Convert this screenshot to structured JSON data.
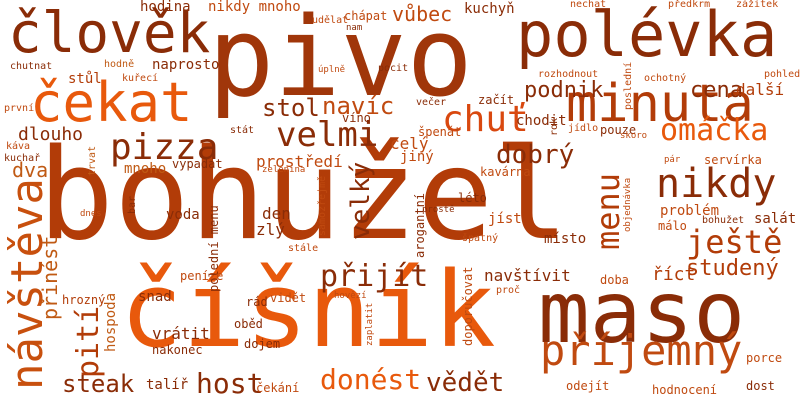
{
  "colors": {
    "background": "#ffffff",
    "dark_brown": "#8a2c07",
    "rust": "#b23c08",
    "orange": "#d9480f",
    "bright_orange": "#e8590c",
    "amber": "#c05a14"
  },
  "words": [
    {
      "text": "bohužel",
      "color": "#b23c08"
    },
    {
      "text": "pivo",
      "color": "#a0360a"
    },
    {
      "text": "číšník",
      "color": "#e8590c"
    },
    {
      "text": "maso",
      "color": "#8a2c07"
    },
    {
      "text": "polévka",
      "color": "#8a2c07"
    },
    {
      "text": "člověk",
      "color": "#8a2c07"
    },
    {
      "text": "čekat",
      "color": "#e8590c"
    },
    {
      "text": "minuta",
      "color": "#b23c08"
    },
    {
      "text": "návštěva",
      "color": "#c8500e"
    },
    {
      "text": "příjemný",
      "color": "#c04a10"
    },
    {
      "text": "nikdy",
      "color": "#8a2c07"
    },
    {
      "text": "pizza",
      "color": "#8a2c07"
    },
    {
      "text": "chuť",
      "color": "#d9480f"
    },
    {
      "text": "velmi",
      "color": "#8a2c07"
    },
    {
      "text": "omáčka",
      "color": "#e8590c"
    },
    {
      "text": "ještě",
      "color": "#b23c08"
    },
    {
      "text": "menu",
      "color": "#b23c08"
    },
    {
      "text": "donést",
      "color": "#e8590c"
    },
    {
      "text": "přijít",
      "color": "#8a2c07"
    },
    {
      "text": "host",
      "color": "#8a2c07"
    },
    {
      "text": "pití",
      "color": "#b23c08"
    },
    {
      "text": "dobrý",
      "color": "#8a2c07"
    },
    {
      "text": "velký",
      "color": "#8a2c07"
    },
    {
      "text": "vědět",
      "color": "#8a2c07"
    },
    {
      "text": "steak",
      "color": "#8a2c07"
    },
    {
      "text": "studený",
      "color": "#b23c08"
    },
    {
      "text": "stol",
      "color": "#8a2c07"
    },
    {
      "text": "navíc",
      "color": "#c04a10"
    },
    {
      "text": "cena",
      "color": "#8a2c07"
    },
    {
      "text": "podnik",
      "color": "#8a2c07"
    },
    {
      "text": "vůbec",
      "color": "#c04a10"
    },
    {
      "text": "dva",
      "color": "#c05a14"
    },
    {
      "text": "přinést",
      "color": "#c05a14"
    },
    {
      "text": "dlouho",
      "color": "#8a2c07"
    },
    {
      "text": "další",
      "color": "#b23c08"
    },
    {
      "text": "navštívit",
      "color": "#8a2c07"
    },
    {
      "text": "říct",
      "color": "#b23c08"
    },
    {
      "text": "prostředí",
      "color": "#c04a10"
    },
    {
      "text": "den",
      "color": "#8a2c07"
    },
    {
      "text": "zlý",
      "color": "#8a2c07"
    },
    {
      "text": "vrátit",
      "color": "#8a2c07"
    },
    {
      "text": "problém",
      "color": "#c04a10"
    },
    {
      "text": "celý",
      "color": "#c04a10"
    },
    {
      "text": "jiný",
      "color": "#c04a10"
    },
    {
      "text": "hodina",
      "color": "#8a2c07"
    },
    {
      "text": "nikdy mnoho",
      "color": "#c04a10"
    },
    {
      "text": "mnoho",
      "color": "#c05a14"
    },
    {
      "text": "naprosto",
      "color": "#8a2c07"
    },
    {
      "text": "stůl",
      "color": "#b23c08"
    },
    {
      "text": "kuchyň",
      "color": "#8a2c07"
    },
    {
      "text": "chodit",
      "color": "#8a2c07"
    },
    {
      "text": "voda",
      "color": "#8a2c07"
    },
    {
      "text": "místo",
      "color": "#8a2c07"
    },
    {
      "text": "jíst",
      "color": "#c04a10"
    },
    {
      "text": "salát",
      "color": "#8a2c07"
    },
    {
      "text": "málo",
      "color": "#c04a10"
    },
    {
      "text": "hospoda",
      "color": "#c05a14"
    },
    {
      "text": "snad",
      "color": "#8a2c07"
    },
    {
      "text": "peníze",
      "color": "#c04a10"
    },
    {
      "text": "vidět",
      "color": "#c04a10"
    },
    {
      "text": "rád",
      "color": "#8a2c07"
    },
    {
      "text": "oběd",
      "color": "#8a2c07"
    },
    {
      "text": "dojem",
      "color": "#8a2c07"
    },
    {
      "text": "nakonec",
      "color": "#8a2c07"
    },
    {
      "text": "talíř",
      "color": "#8a2c07"
    },
    {
      "text": "čekání",
      "color": "#c04a10"
    },
    {
      "text": "odejít",
      "color": "#c04a10"
    },
    {
      "text": "hodnocení",
      "color": "#c04a10"
    },
    {
      "text": "dost",
      "color": "#8a2c07"
    },
    {
      "text": "porce",
      "color": "#c04a10"
    },
    {
      "text": "doba",
      "color": "#c04a10"
    },
    {
      "text": "proč",
      "color": "#c04a10"
    },
    {
      "text": "doporučovat",
      "color": "#c04a10"
    },
    {
      "text": "kavárna",
      "color": "#c04a10"
    },
    {
      "text": "léto",
      "color": "#8a2c07"
    },
    {
      "text": "arogantní",
      "color": "#8a2c07"
    },
    {
      "text": "špatný",
      "color": "#c04a10"
    },
    {
      "text": "pouze",
      "color": "#8a2c07"
    },
    {
      "text": "jídlo",
      "color": "#c04a10"
    },
    {
      "text": "servírka",
      "color": "#c04a10"
    },
    {
      "text": "špenát",
      "color": "#c04a10"
    },
    {
      "text": "víno",
      "color": "#8a2c07"
    },
    {
      "text": "večer",
      "color": "#8a2c07"
    },
    {
      "text": "začít",
      "color": "#8a2c07"
    },
    {
      "text": "pocit",
      "color": "#8a2c07"
    },
    {
      "text": "úplně",
      "color": "#c04a10"
    },
    {
      "text": "stát",
      "color": "#8a2c07"
    },
    {
      "text": "vypadat",
      "color": "#8a2c07"
    },
    {
      "text": "kuchař",
      "color": "#8a2c07"
    },
    {
      "text": "káva",
      "color": "#c04a10"
    },
    {
      "text": "první",
      "color": "#c04a10"
    },
    {
      "text": "chutnat",
      "color": "#8a2c07"
    },
    {
      "text": "hodně",
      "color": "#c05a14"
    },
    {
      "text": "kuřecí",
      "color": "#c04a10"
    },
    {
      "text": "udělat",
      "color": "#c04a10"
    },
    {
      "text": "nam",
      "color": "#8a2c07"
    },
    {
      "text": "chápat",
      "color": "#c04a10"
    },
    {
      "text": "nechat",
      "color": "#c04a10"
    },
    {
      "text": "předkrm",
      "color": "#c04a10"
    },
    {
      "text": "zážitek",
      "color": "#c04a10"
    },
    {
      "text": "rozhodnout",
      "color": "#c04a10"
    },
    {
      "text": "ochotný",
      "color": "#c04a10"
    },
    {
      "text": "pohled",
      "color": "#c04a10"
    },
    {
      "text": "poslední",
      "color": "#c04a10"
    },
    {
      "text": "rok",
      "color": "#8a2c07"
    },
    {
      "text": "skoro",
      "color": "#c04a10"
    },
    {
      "text": "pár",
      "color": "#c04a10"
    },
    {
      "text": "objednávka",
      "color": "#c04a10"
    },
    {
      "text": "bohužet",
      "color": "#8a2c07"
    },
    {
      "text": "trvat",
      "color": "#c05a14"
    },
    {
      "text": "dnes",
      "color": "#c04a10"
    },
    {
      "text": "bar",
      "color": "#8a2c07"
    },
    {
      "text": "zelenina",
      "color": "#c04a10"
    },
    {
      "text": "samozřejmě",
      "color": "#c04a10"
    },
    {
      "text": "prostě",
      "color": "#8a2c07"
    },
    {
      "text": "polední menu",
      "color": "#8a2c07"
    },
    {
      "text": "stále",
      "color": "#c04a10"
    },
    {
      "text": "hrozný",
      "color": "#b23c08"
    },
    {
      "text": "hovězí",
      "color": "#c04a10"
    },
    {
      "text": "zaplatit",
      "color": "#c04a10"
    }
  ]
}
